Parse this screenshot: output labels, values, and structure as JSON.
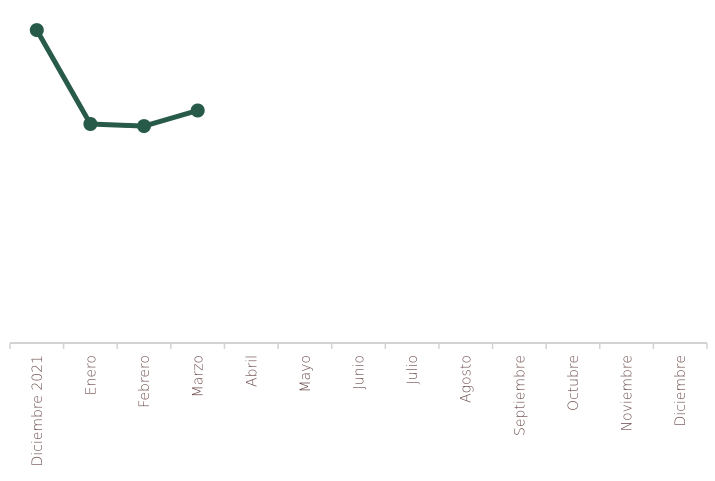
{
  "chart_data": {
    "type": "line",
    "categories": [
      "Diciembre 2021",
      "Enero",
      "Febrero",
      "Marzo",
      "Abril",
      "Mayo",
      "Junio",
      "Julio",
      "Agosto",
      "Septiembre",
      "Octubre",
      "Noviembre",
      "Diciembre"
    ],
    "series": [
      {
        "values": [
          100,
          70,
          69.3,
          74.3,
          null,
          null,
          null,
          null,
          null,
          null,
          null,
          null,
          null
        ]
      }
    ],
    "ylim": [
      0,
      104.5
    ],
    "grid": false,
    "legend": "none",
    "colors": {
      "line": "#275a48",
      "axis": "#d3d3d3",
      "tick_text": "#6b4a4a"
    }
  }
}
